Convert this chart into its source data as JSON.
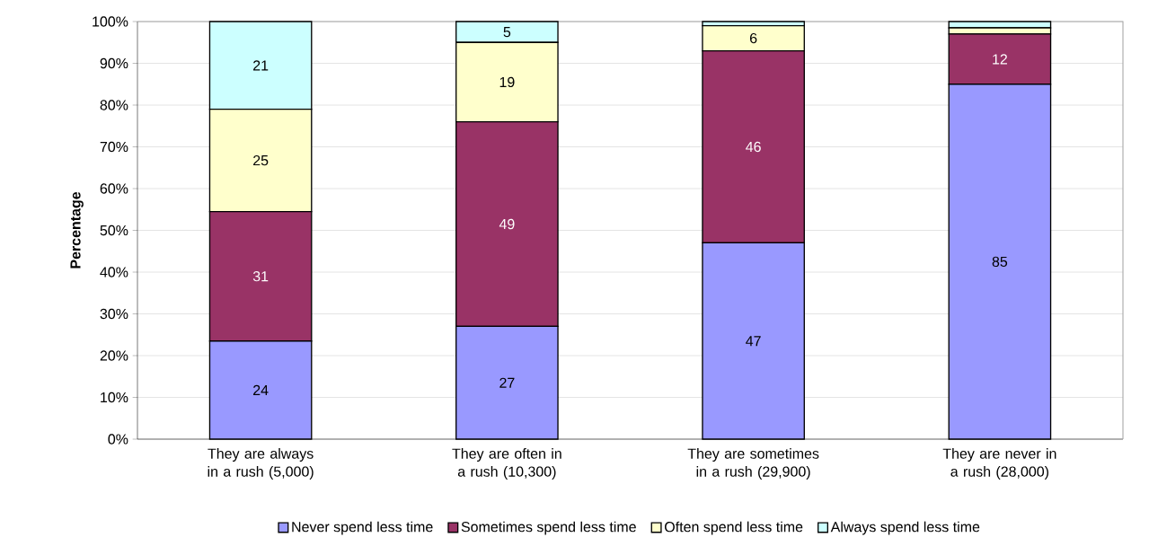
{
  "chart_data": {
    "type": "bar",
    "stacked": true,
    "ylabel": "Percentage",
    "categories": [
      "They are always in a rush (5,000)",
      "They are often in a rush (10,300)",
      "They are sometimes in a rush (29,900)",
      "They are never in a rush (28,000)"
    ],
    "series": [
      {
        "name": "Never spend less time",
        "color": "#9999ff",
        "values": [
          23.5,
          27,
          47,
          85
        ],
        "value_labels": [
          "24",
          "27",
          "47",
          "85"
        ]
      },
      {
        "name": "Sometimes spend less time",
        "color": "#993366",
        "values": [
          31,
          49,
          46,
          12
        ],
        "value_labels": [
          "31",
          "49",
          "46",
          "12"
        ]
      },
      {
        "name": "Often spend less time",
        "color": "#ffffcc",
        "values": [
          24.5,
          19,
          6,
          1.5
        ],
        "value_labels": [
          "25",
          "19",
          "6",
          null
        ]
      },
      {
        "name": "Always spend less time",
        "color": "#ccffff",
        "values": [
          21,
          5,
          1,
          1.5
        ],
        "value_labels": [
          "21",
          "5",
          null,
          null
        ]
      }
    ],
    "ylim": [
      0,
      100
    ],
    "yticks": [
      {
        "value": 0,
        "label": "0%"
      },
      {
        "value": 10,
        "label": "10%"
      },
      {
        "value": 20,
        "label": "20%"
      },
      {
        "value": 30,
        "label": "30%"
      },
      {
        "value": 40,
        "label": "40%"
      },
      {
        "value": 50,
        "label": "50%"
      },
      {
        "value": 60,
        "label": "60%"
      },
      {
        "value": 70,
        "label": "70%"
      },
      {
        "value": 80,
        "label": "80%"
      },
      {
        "value": 90,
        "label": "90%"
      },
      {
        "value": 100,
        "label": "100%"
      }
    ],
    "grid": "y",
    "legend": "bottom"
  }
}
